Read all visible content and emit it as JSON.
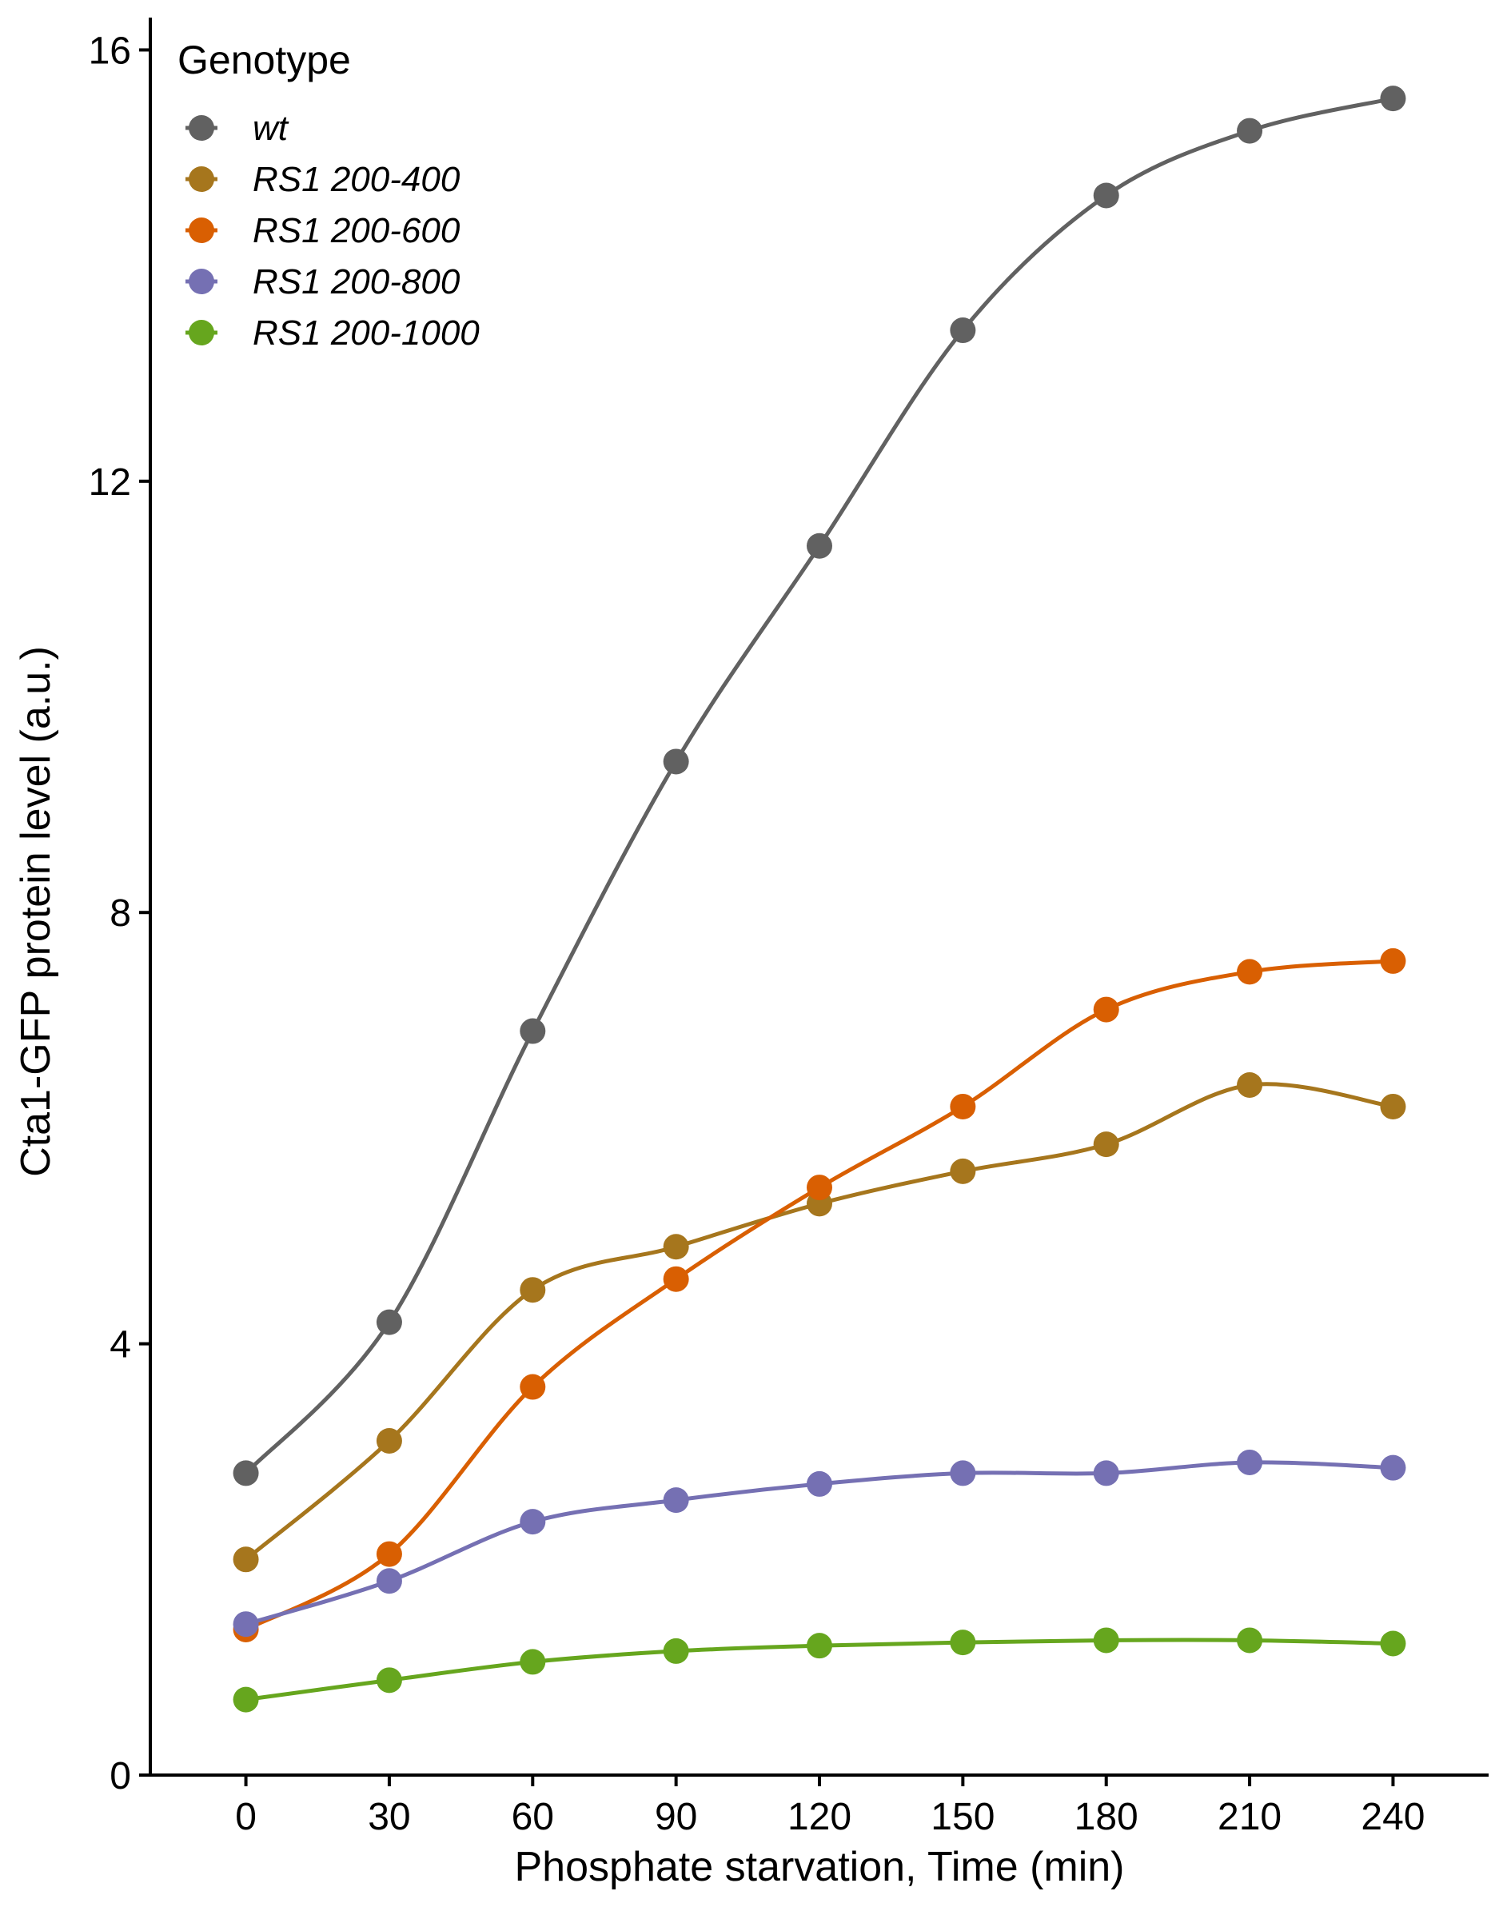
{
  "chart_data": {
    "type": "line",
    "xlabel": "Phosphate starvation, Time (min)",
    "ylabel": "Cta1-GFP protein level (a.u.)",
    "xlim": [
      -20,
      260
    ],
    "ylim": [
      0,
      16.3
    ],
    "xticks": [
      0,
      30,
      60,
      90,
      120,
      150,
      180,
      210,
      240
    ],
    "yticks": [
      0,
      4,
      8,
      12,
      16
    ],
    "grid": false,
    "legend": {
      "title": "Genotype",
      "position": "top-left"
    },
    "x": [
      0,
      30,
      60,
      90,
      120,
      150,
      180,
      210,
      240
    ],
    "series": [
      {
        "name": "wt",
        "color": "#616161",
        "values": [
          2.8,
          4.2,
          6.9,
          9.4,
          11.4,
          13.4,
          14.65,
          15.25,
          15.55
        ]
      },
      {
        "name": "RS1 200-400",
        "color": "#A6761D",
        "values": [
          2.0,
          3.1,
          4.5,
          4.9,
          5.3,
          5.6,
          5.85,
          6.4,
          6.2
        ]
      },
      {
        "name": "RS1 200-600",
        "color": "#D95F02",
        "values": [
          1.35,
          2.05,
          3.6,
          4.6,
          5.45,
          6.2,
          7.1,
          7.45,
          7.55
        ]
      },
      {
        "name": "RS1 200-800",
        "color": "#7570B3",
        "values": [
          1.4,
          1.8,
          2.35,
          2.55,
          2.7,
          2.8,
          2.8,
          2.9,
          2.85
        ]
      },
      {
        "name": "RS1 200-1000",
        "color": "#66A61E",
        "values": [
          0.7,
          0.88,
          1.05,
          1.15,
          1.2,
          1.23,
          1.25,
          1.25,
          1.22
        ]
      }
    ]
  }
}
